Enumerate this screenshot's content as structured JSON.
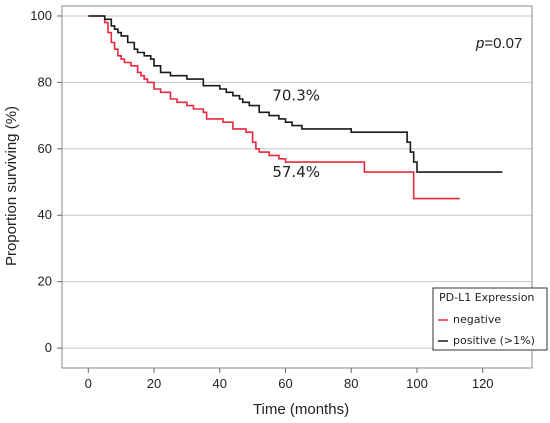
{
  "chart_data": {
    "type": "line",
    "step": true,
    "xlabel": "Time (months)",
    "ylabel": "Proportion surviving (%)",
    "xlim": [
      -8,
      135
    ],
    "ylim": [
      -6,
      103
    ],
    "xticks": [
      0,
      20,
      40,
      60,
      80,
      100,
      120
    ],
    "yticks": [
      0,
      20,
      40,
      60,
      80,
      100
    ],
    "grid": {
      "horizontal": true,
      "vertical": false
    },
    "p_value": {
      "prefix": "p",
      "value": "=0.07"
    },
    "annotations": [
      {
        "text": "70.3%",
        "x": 56,
        "y": 74.5
      },
      {
        "text": "57.4%",
        "x": 56,
        "y": 51.5
      }
    ],
    "legend": {
      "title": "PD-L1 Expression",
      "placement": "bottom-right"
    },
    "colors": {
      "negative": "#e8283c",
      "positive": "#1a1a1a",
      "grid": "#c8c8c8"
    },
    "series": [
      {
        "name": "negative",
        "x": [
          0,
          5,
          6,
          7,
          8,
          9,
          10,
          11,
          13,
          15,
          16,
          17,
          18,
          20,
          22,
          25,
          27,
          30,
          32,
          35,
          36,
          40,
          41,
          44,
          48,
          50,
          51,
          52,
          55,
          58,
          60,
          65,
          84,
          99,
          113
        ],
        "y": [
          100,
          98,
          95,
          92,
          90,
          88,
          87,
          86,
          85,
          83,
          82,
          81,
          80,
          78,
          77,
          75,
          74,
          73,
          72,
          71,
          69,
          69,
          68,
          66,
          65,
          62,
          60,
          59,
          58,
          57,
          56,
          56,
          53,
          45,
          45
        ]
      },
      {
        "name": "positive (>1%)",
        "x": [
          0,
          5,
          7,
          8,
          9,
          10,
          12,
          14,
          15,
          17,
          19,
          20,
          22,
          25,
          30,
          35,
          40,
          42,
          44,
          46,
          47,
          49,
          52,
          55,
          58,
          60,
          62,
          65,
          70,
          80,
          97,
          98,
          99,
          100,
          126
        ],
        "y": [
          100,
          99,
          97,
          96,
          95,
          94,
          92,
          90,
          89,
          88,
          87,
          85,
          83,
          82,
          81,
          79,
          78,
          77,
          76,
          75,
          74,
          73,
          71,
          70,
          69,
          68,
          67,
          66,
          66,
          65,
          62,
          59,
          56,
          53,
          53
        ]
      }
    ]
  }
}
